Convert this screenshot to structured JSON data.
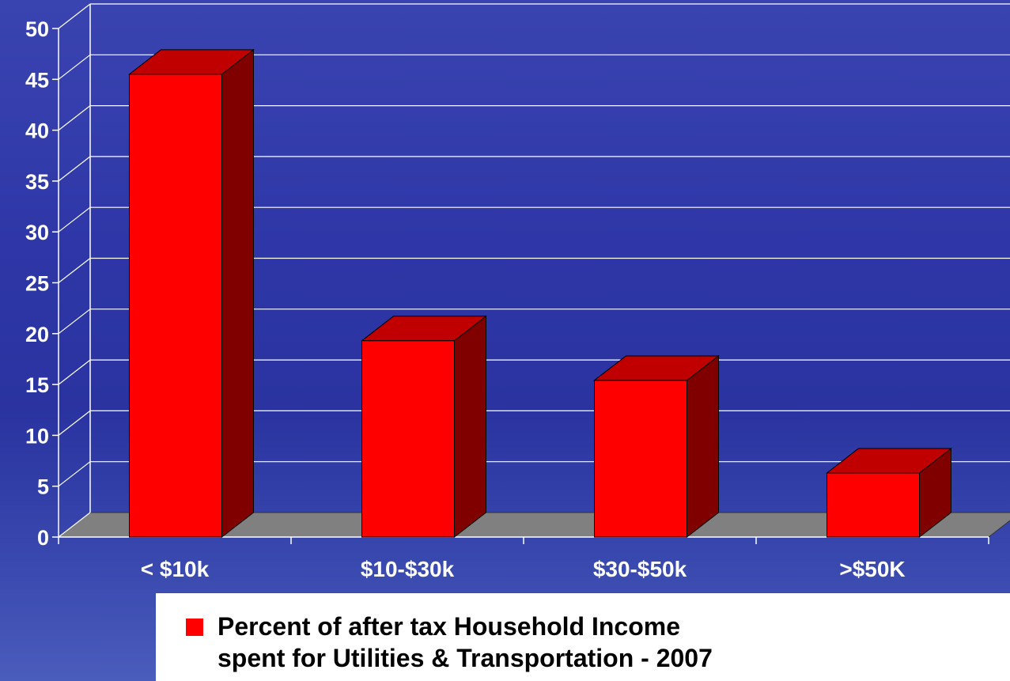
{
  "chart_data": {
    "type": "bar",
    "categories": [
      "< $10k",
      "$10-$30k",
      "$30-$50k",
      ">$50K"
    ],
    "series": [
      {
        "name": "Percent of after tax Household Income spent for Utilities & Transportation - 2007",
        "values": [
          45.5,
          19.3,
          15.4,
          6.3
        ],
        "color": "#ff0000"
      }
    ],
    "ylim": [
      0,
      50
    ],
    "yticks": [
      "0",
      "5",
      "10",
      "15",
      "20",
      "25",
      "30",
      "35",
      "40",
      "45",
      "50"
    ],
    "grid": true,
    "legend_position": "bottom"
  },
  "legend": {
    "line1": "Percent of after tax Household Income",
    "line2": "spent for Utilities & Transportation - 2007"
  },
  "colors": {
    "bar_front": "#ff0000",
    "bar_top": "#c00000",
    "bar_side": "#800000",
    "floor": "#808080",
    "grid": "#ffffff"
  }
}
